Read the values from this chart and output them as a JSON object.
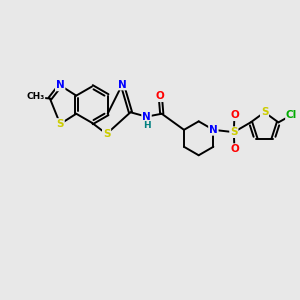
{
  "background_color": "#e8e8e8",
  "bond_color": "#000000",
  "atom_colors": {
    "N": "#0000ff",
    "S": "#cccc00",
    "O": "#ff0000",
    "Cl": "#00aa00",
    "C": "#000000",
    "H": "#008080"
  },
  "figsize": [
    3.0,
    3.0
  ],
  "dpi": 100
}
